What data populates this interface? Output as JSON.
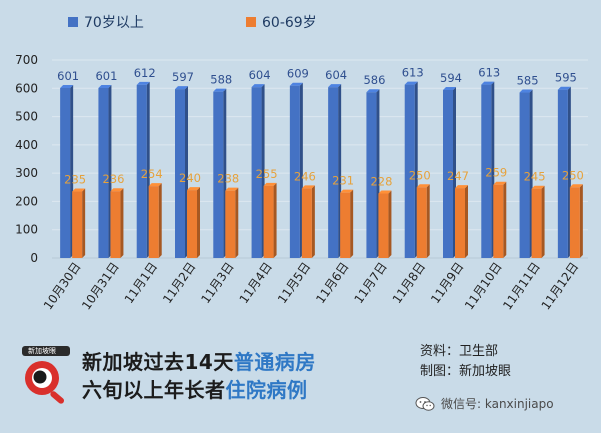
{
  "legend": [
    {
      "label": "70岁以上",
      "color": "#4472c4"
    },
    {
      "label": "60-69岁",
      "color": "#ed7d31"
    }
  ],
  "chart_data": {
    "type": "bar",
    "categories": [
      "10月30日",
      "10月31日",
      "11月1日",
      "11月2日",
      "11月3日",
      "11月4日",
      "11月5日",
      "11月6日",
      "11月7日",
      "11月8日",
      "11月9日",
      "11月10日",
      "11月11日",
      "11月12日"
    ],
    "series": [
      {
        "name": "70岁以上",
        "values": [
          601,
          601,
          612,
          597,
          588,
          604,
          609,
          604,
          586,
          613,
          594,
          613,
          585,
          595
        ],
        "color": "#4472c4",
        "label_color": "#2f4f8f"
      },
      {
        "name": "60-69岁",
        "values": [
          235,
          236,
          254,
          240,
          238,
          255,
          246,
          231,
          228,
          250,
          247,
          259,
          245,
          250
        ],
        "color": "#ed7d31",
        "label_color": "#e6a23c"
      }
    ],
    "ylim": [
      0,
      700
    ],
    "yticks": [
      0,
      100,
      200,
      300,
      400,
      500,
      600,
      700
    ],
    "grid": true
  },
  "caption": {
    "line1_part1": "新加坡过去14天",
    "line1_part2": "普通病房",
    "line2_part1": "六旬以上年长者",
    "line2_part2": "住院病例",
    "logo_text": "新加坡眼"
  },
  "source": {
    "line1": "资料：卫生部",
    "line2": "制图：新加坡眼"
  },
  "wechat": {
    "label": "微信号: kanxinjiapo",
    "icon": "wechat-icon"
  }
}
